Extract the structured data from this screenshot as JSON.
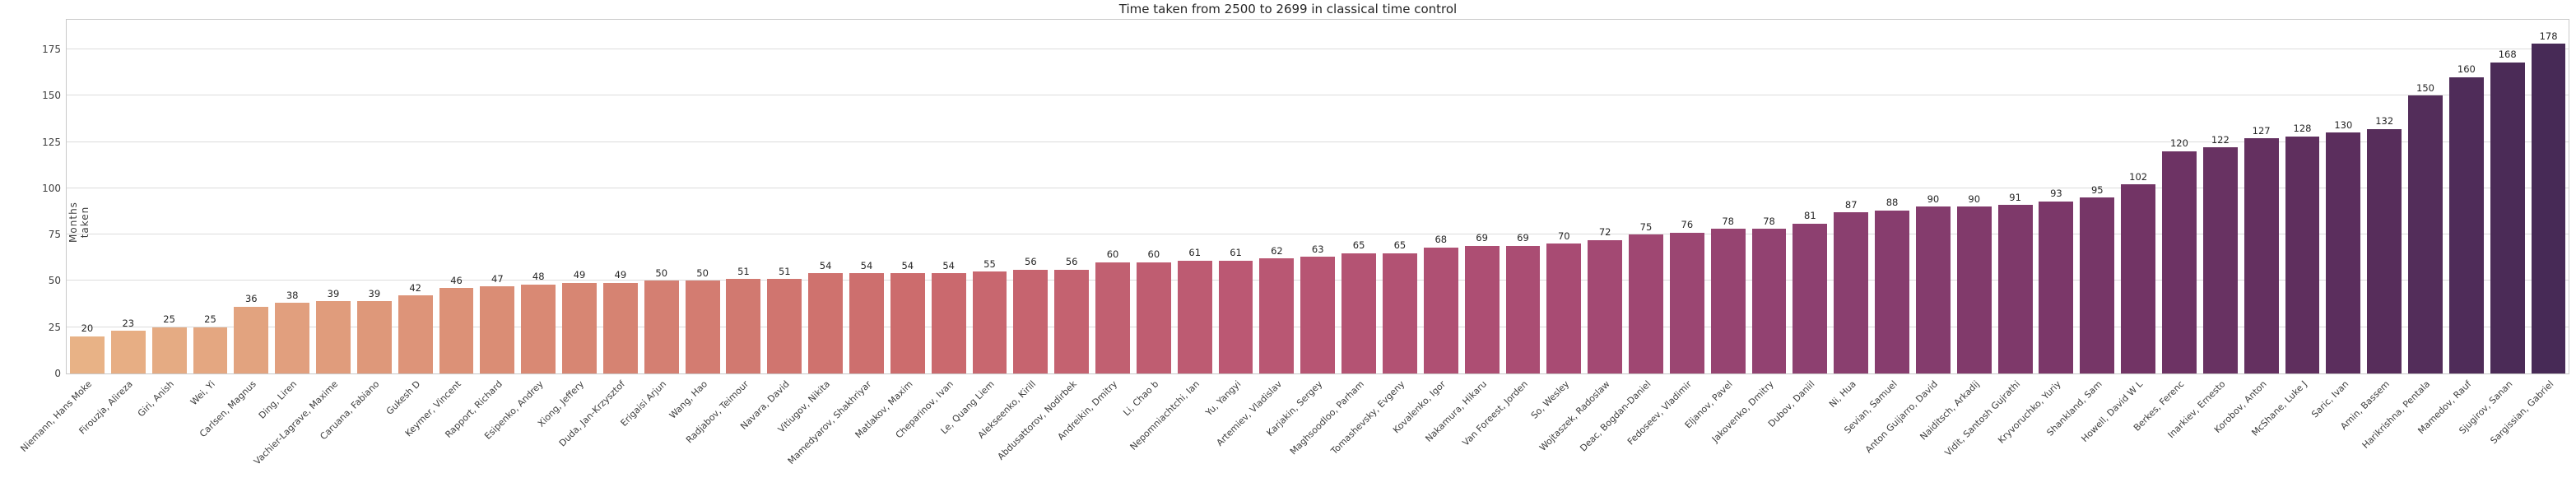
{
  "chart_data": {
    "type": "bar",
    "title": "Time taken from 2500 to 2699 in classical time control",
    "xlabel": "",
    "ylabel": "Months taken",
    "ylim": [
      0,
      191
    ],
    "yticks": [
      0,
      25,
      50,
      75,
      100,
      125,
      150,
      175
    ],
    "grid": "horizontal",
    "legend": "none",
    "bar_labels": "integer value above each bar",
    "palette_stops": [
      [
        0.0,
        "#e8b286"
      ],
      [
        0.18,
        "#d98a74"
      ],
      [
        0.33,
        "#cc6c6d"
      ],
      [
        0.47,
        "#bb5873"
      ],
      [
        0.6,
        "#a84b73"
      ],
      [
        0.7,
        "#8d4070"
      ],
      [
        0.8,
        "#7b3769"
      ],
      [
        0.9,
        "#5f2f5e"
      ],
      [
        1.0,
        "#472a56"
      ]
    ],
    "categories": [
      "Niemann, Hans Moke",
      "Firouzja, Alireza",
      "Giri, Anish",
      "Wei, Yi",
      "Carlsen, Magnus",
      "Ding, Liren",
      "Vachier-Lagrave, Maxime",
      "Caruana, Fabiano",
      "Gukesh D",
      "Keymer, Vincent",
      "Rapport, Richard",
      "Esipenko, Andrey",
      "Xiong, Jeffery",
      "Duda, Jan-Krzysztof",
      "Erigaisi Arjun",
      "Wang, Hao",
      "Radjabov, Teimour",
      "Navara, David",
      "Vitiugov, Nikita",
      "Mamedyarov, Shakhriyar",
      "Matlakov, Maxim",
      "Cheparinov, Ivan",
      "Le, Quang Liem",
      "Alekseenko, Kirill",
      "Abdusattorov, Nodirbek",
      "Andreikin, Dmitry",
      "Li, Chao b",
      "Nepomniachtchi, Ian",
      "Yu, Yangyi",
      "Artemiev, Vladislav",
      "Karjakin, Sergey",
      "Maghsoodloo, Parham",
      "Tomashevsky, Evgeny",
      "Kovalenko, Igor",
      "Nakamura, Hikaru",
      "Van Foreest, Jorden",
      "So, Wesley",
      "Wojtaszek, Radoslaw",
      "Deac, Bogdan-Daniel",
      "Fedoseev, Vladimir",
      "Eljanov, Pavel",
      "Jakovenko, Dmitry",
      "Dubov, Daniil",
      "Ni, Hua",
      "Sevian, Samuel",
      "Anton Guijarro, David",
      "Naiditsch, Arkadij",
      "Vidit, Santosh Gujrathi",
      "Kryvoruchko, Yuriy",
      "Shankland, Sam",
      "Howell, David W L",
      "Berkes, Ferenc",
      "Inarkiev, Ernesto",
      "Korobov, Anton",
      "McShane, Luke J",
      "Saric, Ivan",
      "Amin, Bassem",
      "Harikrishna, Pentala",
      "Mamedov, Rauf",
      "Sjugirov, Sanan",
      "Sargissian, Gabriel"
    ],
    "values": [
      20,
      23,
      25,
      25,
      36,
      38,
      39,
      39,
      42,
      46,
      47,
      48,
      49,
      49,
      50,
      50,
      51,
      51,
      54,
      54,
      54,
      54,
      55,
      56,
      56,
      60,
      60,
      61,
      61,
      62,
      63,
      65,
      65,
      68,
      69,
      69,
      70,
      72,
      75,
      76,
      78,
      78,
      81,
      87,
      88,
      90,
      90,
      91,
      93,
      95,
      102,
      120,
      122,
      127,
      128,
      130,
      132,
      150,
      160,
      168,
      178
    ]
  }
}
